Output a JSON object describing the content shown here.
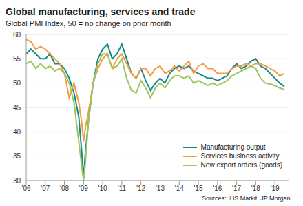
{
  "chart_data": {
    "type": "line",
    "title": "Global manufacturing, services and trade",
    "subtitle": "Global PMI Index, 50 = no change on prior month",
    "annotations": [
      "Sources: IHS Markit, JP Morgan."
    ],
    "x": [
      2006,
      2006.25,
      2006.5,
      2006.75,
      2007,
      2007.25,
      2007.5,
      2007.75,
      2008,
      2008.25,
      2008.5,
      2008.75,
      2008.9,
      2009,
      2009.1,
      2009.25,
      2009.5,
      2009.75,
      2010,
      2010.25,
      2010.5,
      2010.75,
      2011,
      2011.25,
      2011.5,
      2011.75,
      2012,
      2012.25,
      2012.5,
      2012.75,
      2013,
      2013.25,
      2013.5,
      2013.75,
      2014,
      2014.25,
      2014.5,
      2014.75,
      2015,
      2015.25,
      2015.5,
      2015.75,
      2016,
      2016.25,
      2016.5,
      2016.75,
      2017,
      2017.25,
      2017.5,
      2017.75,
      2018,
      2018.25,
      2018.5,
      2018.75,
      2019,
      2019.25,
      2019.5
    ],
    "series": [
      {
        "name": "Manufacturing output",
        "color": "#14878a",
        "values": [
          56,
          57,
          56,
          55,
          55,
          56,
          54,
          54,
          53,
          51,
          48,
          43,
          36,
          30.5,
          36,
          42,
          50,
          55,
          57,
          58,
          55,
          56,
          58,
          55,
          52,
          51,
          53,
          50.5,
          48.5,
          50,
          51,
          50,
          52,
          53,
          53.5,
          53,
          53.5,
          52.5,
          52,
          51.5,
          51,
          51,
          50.5,
          51,
          51.5,
          53,
          54,
          53,
          53.5,
          54.5,
          55,
          53.5,
          53,
          52,
          51,
          50,
          49.3
        ]
      },
      {
        "name": "Services business activity",
        "color": "#f79a3e",
        "values": [
          59,
          58.5,
          57,
          57.5,
          57,
          56,
          55,
          54,
          52,
          47,
          50,
          46,
          42,
          38,
          41,
          44,
          50,
          53,
          55,
          56,
          53,
          55,
          56,
          54,
          52,
          51,
          53,
          53,
          51.5,
          53,
          53.5,
          52,
          52.5,
          53.5,
          52.5,
          53.5,
          54.5,
          52,
          53.5,
          54,
          53,
          53,
          52,
          52,
          52,
          53,
          53.5,
          53.5,
          54,
          53.5,
          54,
          54,
          53.5,
          53,
          52.5,
          51.5,
          52
        ]
      },
      {
        "name": "New export orders (goods)",
        "color": "#9cc55a",
        "values": [
          54,
          54.5,
          53,
          54,
          53,
          53.5,
          52.5,
          53,
          52,
          50,
          46,
          38,
          33,
          30,
          34,
          42,
          50,
          54,
          56,
          56,
          53,
          53.5,
          55,
          51,
          48.5,
          48,
          50.5,
          49,
          47,
          49,
          50,
          49,
          50.5,
          51.5,
          51.5,
          51,
          51.5,
          50,
          50.5,
          50,
          49.5,
          50,
          49.5,
          50,
          50.5,
          51.5,
          52,
          52.5,
          53,
          53.5,
          53,
          51,
          50,
          49.8,
          49.5,
          49,
          48.7
        ]
      }
    ],
    "xlim": [
      2006,
      2019.75
    ],
    "xticks": [
      {
        "value": 2006,
        "label": "'06"
      },
      {
        "value": 2007,
        "label": "'07"
      },
      {
        "value": 2008,
        "label": "'08"
      },
      {
        "value": 2009,
        "label": "'09"
      },
      {
        "value": 2010,
        "label": "'10"
      },
      {
        "value": 2011,
        "label": "'11"
      },
      {
        "value": 2012,
        "label": "'12"
      },
      {
        "value": 2013,
        "label": "'13"
      },
      {
        "value": 2014,
        "label": "'14"
      },
      {
        "value": 2015,
        "label": "'15"
      },
      {
        "value": 2016,
        "label": "'16"
      },
      {
        "value": 2017,
        "label": "'17"
      },
      {
        "value": 2018,
        "label": "'18"
      },
      {
        "value": 2019,
        "label": "'19"
      }
    ],
    "ylim": [
      30,
      60
    ],
    "yticks": [
      30,
      35,
      40,
      45,
      50,
      55,
      60
    ],
    "grid": true,
    "legend": "lower right"
  }
}
